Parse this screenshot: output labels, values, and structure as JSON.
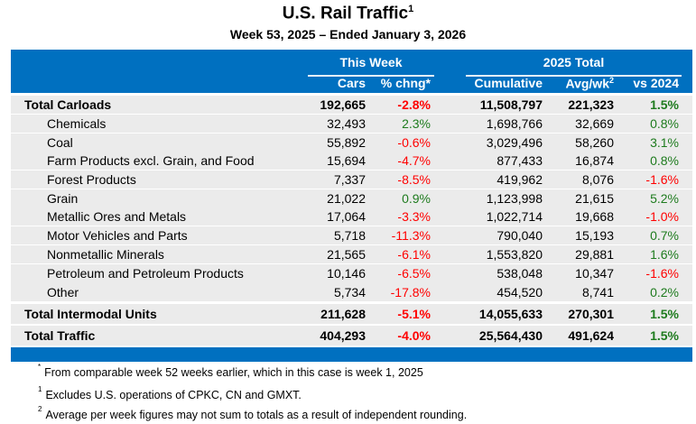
{
  "title": "U.S. Rail Traffic",
  "title_footnote": "1",
  "subtitle": "Week 53, 2025 – Ended January 3, 2026",
  "colors": {
    "header_blue": "#0070c0",
    "row_gray": "#ebebeb",
    "negative": "#ff0000",
    "positive": "#1e7b1e"
  },
  "header": {
    "group_this_week": "This Week",
    "group_total": "2025 Total",
    "cars": "Cars",
    "pct_change": "% chng*",
    "cumulative": "Cumulative",
    "avg_wk": "Avg/wk",
    "avg_wk_footnote": "2",
    "vs_2024": "vs 2024"
  },
  "rows": [
    {
      "label": "Total Carloads",
      "bold": true,
      "cars": "192,665",
      "pct": "-2.8%",
      "cumulative": "11,508,797",
      "avg": "221,323",
      "vs": "1.5%"
    },
    {
      "label": "Chemicals",
      "cars": "32,493",
      "pct": "2.3%",
      "cumulative": "1,698,766",
      "avg": "32,669",
      "vs": "0.8%"
    },
    {
      "label": "Coal",
      "cars": "55,892",
      "pct": "-0.6%",
      "cumulative": "3,029,496",
      "avg": "58,260",
      "vs": "3.1%"
    },
    {
      "label": "Farm Products excl. Grain, and Food",
      "cars": "15,694",
      "pct": "-4.7%",
      "cumulative": "877,433",
      "avg": "16,874",
      "vs": "0.8%"
    },
    {
      "label": "Forest Products",
      "cars": "7,337",
      "pct": "-8.5%",
      "cumulative": "419,962",
      "avg": "8,076",
      "vs": "-1.6%"
    },
    {
      "label": "Grain",
      "cars": "21,022",
      "pct": "0.9%",
      "cumulative": "1,123,998",
      "avg": "21,615",
      "vs": "5.2%"
    },
    {
      "label": "Metallic Ores and Metals",
      "cars": "17,064",
      "pct": "-3.3%",
      "cumulative": "1,022,714",
      "avg": "19,668",
      "vs": "-1.0%"
    },
    {
      "label": "Motor Vehicles and Parts",
      "cars": "5,718",
      "pct": "-11.3%",
      "cumulative": "790,040",
      "avg": "15,193",
      "vs": "0.7%"
    },
    {
      "label": "Nonmetallic Minerals",
      "cars": "21,565",
      "pct": "-6.1%",
      "cumulative": "1,553,820",
      "avg": "29,881",
      "vs": "1.6%"
    },
    {
      "label": "Petroleum and Petroleum Products",
      "cars": "10,146",
      "pct": "-6.5%",
      "cumulative": "538,048",
      "avg": "10,347",
      "vs": "-1.6%"
    },
    {
      "label": "Other",
      "cars": "5,734",
      "pct": "-17.8%",
      "cumulative": "454,520",
      "avg": "8,741",
      "vs": "0.2%"
    },
    {
      "label": "Total Intermodal Units",
      "bold": true,
      "cars": "211,628",
      "pct": "-5.1%",
      "cumulative": "14,055,633",
      "avg": "270,301",
      "vs": "1.5%"
    },
    {
      "label": "Total Traffic",
      "bold": true,
      "cars": "404,293",
      "pct": "-4.0%",
      "cumulative": "25,564,430",
      "avg": "491,624",
      "vs": "1.5%"
    }
  ],
  "footnotes": [
    {
      "mark": "*",
      "text": "From comparable week 52 weeks earlier, which in this case is week 1, 2025"
    },
    {
      "mark": "1",
      "text": "Excludes U.S. operations of CPKC, CN and GMXT."
    },
    {
      "mark": "2",
      "text": "Average per week figures may not sum to totals as a result of independent rounding."
    }
  ]
}
